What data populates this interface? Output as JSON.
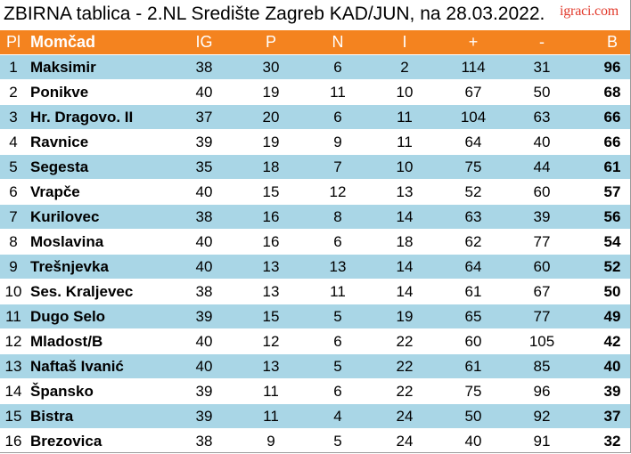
{
  "title": "ZBIRNA tablica - 2.NL Središte Zagreb KAD/JUN, na 28.03.2022.",
  "logo": "igraci.com",
  "colors": {
    "header_bg": "#f4831f",
    "header_text": "#ffffff",
    "row_odd_bg": "#a9d6e6",
    "row_even_bg": "#ffffff",
    "logo": "#e23a2c"
  },
  "columns": [
    "Pl",
    "Momčad",
    "IG",
    "P",
    "N",
    "I",
    "+",
    "-",
    "B"
  ],
  "rows": [
    [
      "1",
      "Maksimir",
      "38",
      "30",
      "6",
      "2",
      "114",
      "31",
      "96"
    ],
    [
      "2",
      "Ponikve",
      "40",
      "19",
      "11",
      "10",
      "67",
      "50",
      "68"
    ],
    [
      "3",
      "Hr. Dragovo. II",
      "37",
      "20",
      "6",
      "11",
      "104",
      "63",
      "66"
    ],
    [
      "4",
      "Ravnice",
      "39",
      "19",
      "9",
      "11",
      "64",
      "40",
      "66"
    ],
    [
      "5",
      "Segesta",
      "35",
      "18",
      "7",
      "10",
      "75",
      "44",
      "61"
    ],
    [
      "6",
      "Vrapče",
      "40",
      "15",
      "12",
      "13",
      "52",
      "60",
      "57"
    ],
    [
      "7",
      "Kurilovec",
      "38",
      "16",
      "8",
      "14",
      "63",
      "39",
      "56"
    ],
    [
      "8",
      "Moslavina",
      "40",
      "16",
      "6",
      "18",
      "62",
      "77",
      "54"
    ],
    [
      "9",
      "Trešnjevka",
      "40",
      "13",
      "13",
      "14",
      "64",
      "60",
      "52"
    ],
    [
      "10",
      "Ses. Kraljevec",
      "38",
      "13",
      "11",
      "14",
      "61",
      "67",
      "50"
    ],
    [
      "11",
      "Dugo Selo",
      "39",
      "15",
      "5",
      "19",
      "65",
      "77",
      "49"
    ],
    [
      "12",
      "Mladost/B",
      "40",
      "12",
      "6",
      "22",
      "60",
      "105",
      "42"
    ],
    [
      "13",
      "Naftaš Ivanić",
      "40",
      "13",
      "5",
      "22",
      "61",
      "85",
      "40"
    ],
    [
      "14",
      "Špansko",
      "39",
      "11",
      "6",
      "22",
      "75",
      "96",
      "39"
    ],
    [
      "15",
      "Bistra",
      "39",
      "11",
      "4",
      "24",
      "50",
      "92",
      "37"
    ],
    [
      "16",
      "Brezovica",
      "38",
      "9",
      "5",
      "24",
      "40",
      "91",
      "32"
    ]
  ]
}
